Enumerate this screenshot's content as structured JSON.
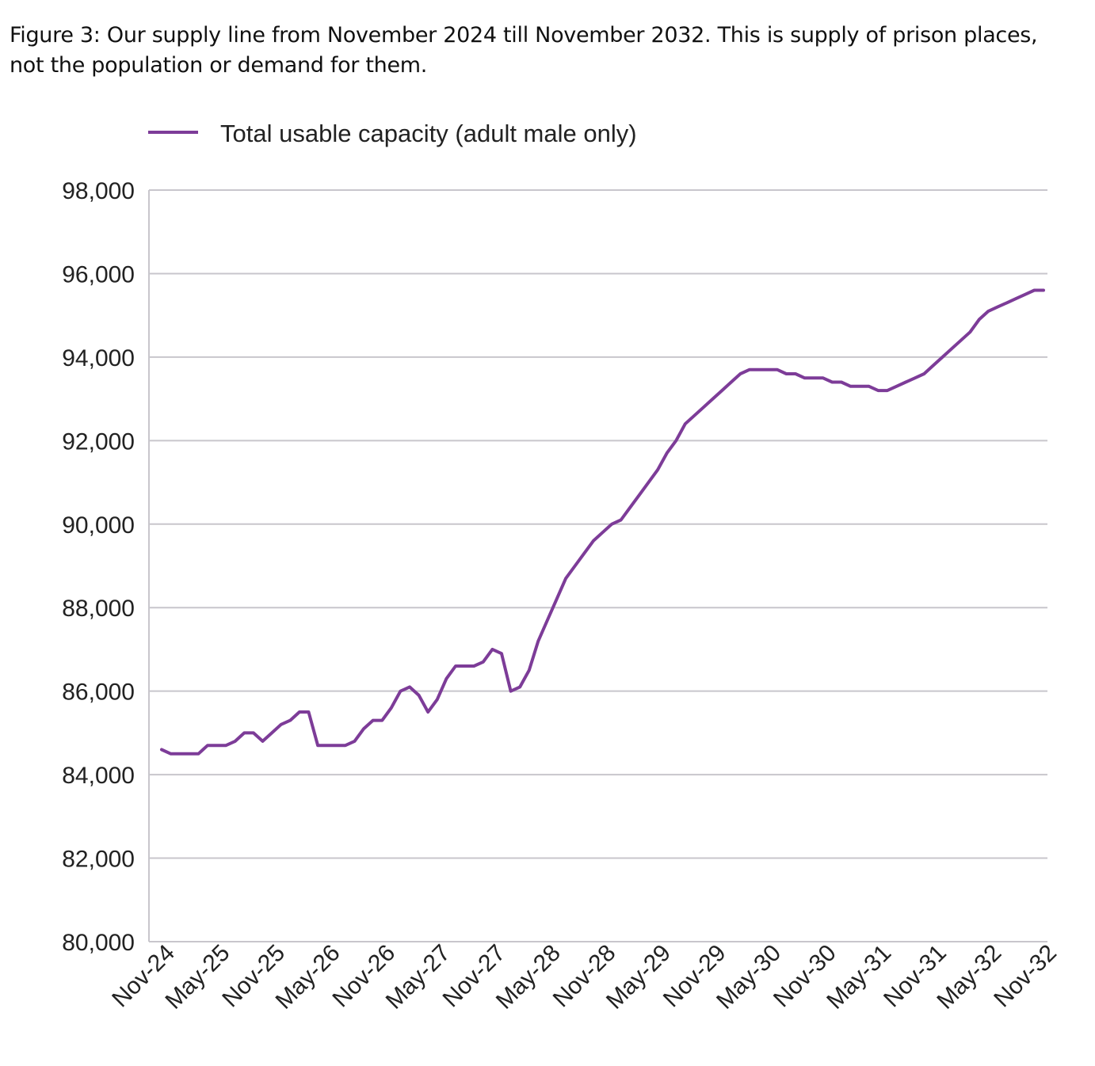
{
  "caption": "Figure 3: Our supply line from November 2024 till November 2032. This is supply of prison places, not the population or demand for them.",
  "chart_data": {
    "type": "line",
    "title": "",
    "xlabel": "",
    "ylabel": "",
    "ylim": [
      80000,
      98000
    ],
    "y_ticks": [
      80000,
      82000,
      84000,
      86000,
      88000,
      90000,
      92000,
      94000,
      96000,
      98000
    ],
    "y_tick_labels": [
      "80,000",
      "82,000",
      "84,000",
      "86,000",
      "88,000",
      "90,000",
      "92,000",
      "94,000",
      "96,000",
      "98,000"
    ],
    "x_range": [
      "Nov-24",
      "Nov-32"
    ],
    "x_frequency": "monthly",
    "x_tick_labels": [
      "Nov-24",
      "May-25",
      "Nov-25",
      "May-26",
      "Nov-26",
      "May-27",
      "Nov-27",
      "May-28",
      "Nov-28",
      "May-29",
      "Nov-29",
      "May-30",
      "Nov-30",
      "May-31",
      "Nov-31",
      "May-32",
      "Nov-32"
    ],
    "grid": "horizontal",
    "legend_position": "top-left",
    "series": [
      {
        "name": "Total usable capacity (adult male only)",
        "color": "#7d3c98",
        "values": [
          84600,
          84500,
          84500,
          84500,
          84500,
          84700,
          84700,
          84700,
          84800,
          85000,
          85000,
          84800,
          85000,
          85200,
          85300,
          85500,
          85500,
          84700,
          84700,
          84700,
          84700,
          84800,
          85100,
          85300,
          85300,
          85600,
          86000,
          86100,
          85900,
          85500,
          85800,
          86300,
          86600,
          86600,
          86600,
          86700,
          87000,
          86900,
          86000,
          86100,
          86500,
          87200,
          87700,
          88200,
          88700,
          89000,
          89300,
          89600,
          89800,
          90000,
          90100,
          90400,
          90700,
          91000,
          91300,
          91700,
          92000,
          92400,
          92600,
          92800,
          93000,
          93200,
          93400,
          93600,
          93700,
          93700,
          93700,
          93700,
          93600,
          93600,
          93500,
          93500,
          93500,
          93400,
          93400,
          93300,
          93300,
          93300,
          93200,
          93200,
          93300,
          93400,
          93500,
          93600,
          93800,
          94000,
          94200,
          94400,
          94600,
          94900,
          95100,
          95200,
          95300,
          95400,
          95500,
          95600,
          95600
        ]
      }
    ]
  }
}
